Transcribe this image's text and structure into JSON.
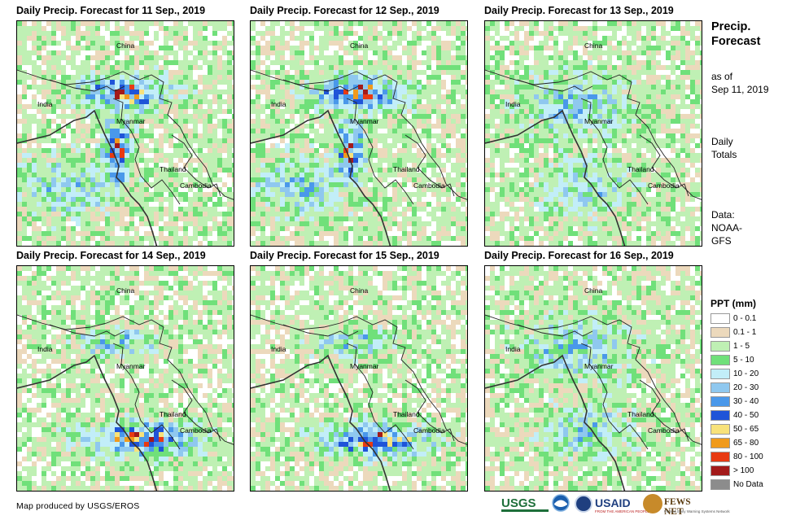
{
  "panels": [
    {
      "title": "Daily Precip. Forecast for 11 Sep., 2019",
      "seed": 11,
      "heavy": "north"
    },
    {
      "title": "Daily Precip. Forecast for 12 Sep., 2019",
      "seed": 12,
      "heavy": "north"
    },
    {
      "title": "Daily Precip. Forecast for 13 Sep., 2019",
      "seed": 13,
      "heavy": "light"
    },
    {
      "title": "Daily Precip. Forecast for 14 Sep., 2019",
      "seed": 14,
      "heavy": "south"
    },
    {
      "title": "Daily Precip. Forecast for 15 Sep., 2019",
      "seed": 15,
      "heavy": "south"
    },
    {
      "title": "Daily Precip. Forecast for 16 Sep., 2019",
      "seed": 16,
      "heavy": "light"
    }
  ],
  "map_labels": {
    "china": "China",
    "india": "India",
    "myanmar": "Myanmar",
    "thailand": "Thailand",
    "cambodia": "Cambodia"
  },
  "side": {
    "title": "Precip. Forecast",
    "as_of_label": "as of",
    "as_of_date": "Sep 11, 2019",
    "totals_line1": "Daily",
    "totals_line2": "Totals",
    "data_line1": "Data:",
    "data_line2": "NOAA-",
    "data_line3": "GFS"
  },
  "legend": {
    "title": "PPT (mm)",
    "items": [
      {
        "label": "0 - 0.1",
        "color": "#ffffff"
      },
      {
        "label": "0.1 - 1",
        "color": "#ecd9bc"
      },
      {
        "label": "1 - 5",
        "color": "#bff0b4"
      },
      {
        "label": "5 - 10",
        "color": "#70e07a"
      },
      {
        "label": "10 - 20",
        "color": "#c2eef8"
      },
      {
        "label": "20 - 30",
        "color": "#8fc8ef"
      },
      {
        "label": "30 - 40",
        "color": "#4a98ea"
      },
      {
        "label": "40 - 50",
        "color": "#1f54d8"
      },
      {
        "label": "50 - 65",
        "color": "#f8e27a"
      },
      {
        "label": "65 - 80",
        "color": "#f09a1c"
      },
      {
        "label": "80 - 100",
        "color": "#e83a12"
      },
      {
        "label": "> 100",
        "color": "#a31a1a"
      },
      {
        "label": "No Data",
        "color": "#8c8c8c"
      }
    ]
  },
  "credit": "Map produced by USGS/EROS",
  "logos": {
    "usgs": "USGS",
    "usaid": "USAID",
    "usaid_sub": "FROM THE AMERICAN PEOPLE",
    "fews": "FEWS NET",
    "fews_sub": "Famine Early Warning Systems Network",
    "usgs_icon": "usgs-logo",
    "noaa_icon": "noaa-logo"
  }
}
